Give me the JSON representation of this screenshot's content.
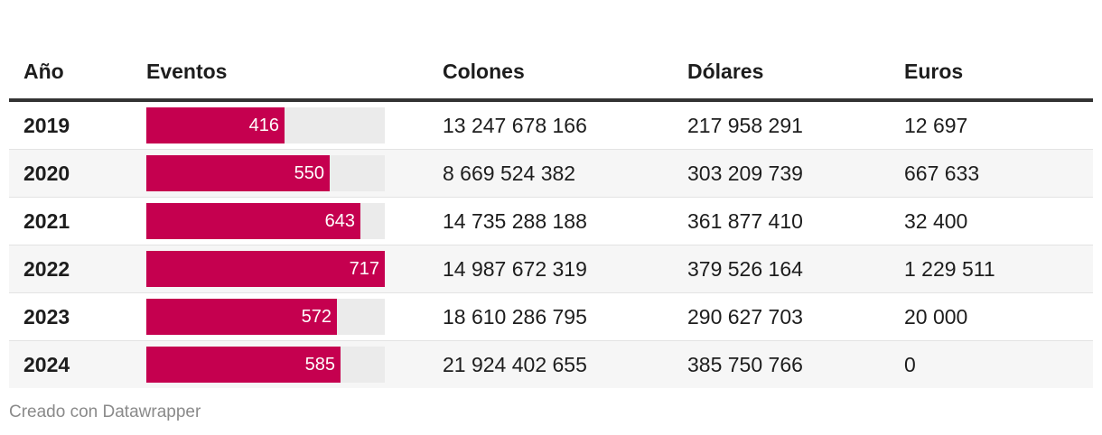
{
  "chart_data": {
    "type": "table",
    "columns": [
      "Año",
      "Eventos",
      "Colones",
      "Dólares",
      "Euros"
    ],
    "bar_color": "#c5004f",
    "bar_max": 717,
    "rows": [
      {
        "year": "2019",
        "events": 416,
        "events_label": "416",
        "colones": "13 247 678 166",
        "dolares": "217 958 291",
        "euros": "12 697"
      },
      {
        "year": "2020",
        "events": 550,
        "events_label": "550",
        "colones": "8 669 524 382",
        "dolares": "303 209 739",
        "euros": "667 633"
      },
      {
        "year": "2021",
        "events": 643,
        "events_label": "643",
        "colones": "14 735 288 188",
        "dolares": "361 877 410",
        "euros": "32 400"
      },
      {
        "year": "2022",
        "events": 717,
        "events_label": "717",
        "colones": "14 987 672 319",
        "dolares": "379 526 164",
        "euros": "1 229 511"
      },
      {
        "year": "2023",
        "events": 572,
        "events_label": "572",
        "colones": "18 610 286 795",
        "dolares": "290 627 703",
        "euros": "20 000"
      },
      {
        "year": "2024",
        "events": 585,
        "events_label": "585",
        "colones": "21 924 402 655",
        "dolares": "385 750 766",
        "euros": "0"
      }
    ]
  },
  "footer": "Creado con Datawrapper"
}
